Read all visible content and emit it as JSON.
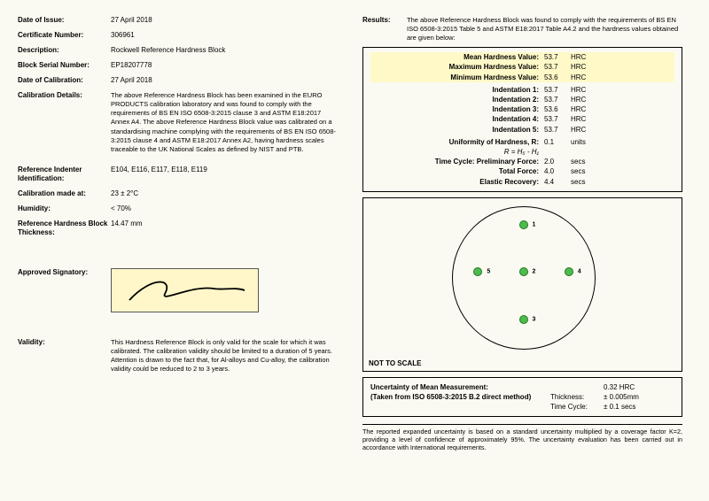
{
  "left": {
    "issue_lbl": "Date of Issue:",
    "issue_val": "27 April 2018",
    "cert_lbl": "Certificate Number:",
    "cert_val": "306961",
    "desc_lbl": "Description:",
    "desc_val": "Rockwell Reference Hardness Block",
    "serial_lbl": "Block Serial Number:",
    "serial_val": "EP18207778",
    "calibdate_lbl": "Date of Calibration:",
    "calibdate_val": "27 April 2018",
    "details_lbl": "Calibration Details:",
    "details_val": "The above Reference Hardness Block has been examined in the EURO PRODUCTS calibration laboratory and was found to comply with the requirements of BS EN ISO 6508-3:2015 clause 3 and ASTM E18:2017 Annex A4. The above Reference Hardness Block value was calibrated on a standardising machine complying with the requirements of BS EN ISO 6508-3:2015 clause 4 and ASTM E18:2017 Annex A2, having hardness scales traceable to the UK National Scales as defined by NIST and PTB.",
    "indenter_lbl": "Reference Indenter Identification:",
    "indenter_val": "E104, E116, E117, E118, E119",
    "calibat_lbl": "Calibration made at:",
    "calibat_val": "23 ± 2°C",
    "humidity_lbl": "Humidity:",
    "humidity_val": "< 70%",
    "thick_lbl": "Reference Hardness Block Thickness:",
    "thick_val": "14.47 mm",
    "sig_lbl": "Approved Signatory:",
    "validity_lbl": "Validity:",
    "validity_val": "This Hardness Reference Block is only valid for the scale for which it was calibrated. The calibration validity should be limited to a duration of 5 years. Attention is drawn to the fact that, for Al-alloys and Cu-alloy, the calibration validity could be reduced to 2 to 3 years."
  },
  "right": {
    "results_lbl": "Results:",
    "results_txt": "The above Reference Hardness Block was found to comply with the requirements of BS EN ISO 6508-3:2015 Table 5 and ASTM E18:2017 Table A4.2 and the hardness values obtained are given below:",
    "mean_k": "Mean Hardness Value:",
    "mean_v": "53.7",
    "unit": "HRC",
    "max_k": "Maximum Hardness Value:",
    "max_v": "53.7",
    "min_k": "Minimum Hardness Value:",
    "min_v": "53.6",
    "i1_k": "Indentation 1:",
    "i1_v": "53.7",
    "i2_k": "Indentation 2:",
    "i2_v": "53.7",
    "i3_k": "Indentation 3:",
    "i3_v": "53.6",
    "i4_k": "Indentation 4:",
    "i4_v": "53.7",
    "i5_k": "Indentation 5:",
    "i5_v": "53.7",
    "unif_k": "Uniformity of Hardness, R:",
    "unif_v": "0.1",
    "unif_u": "units",
    "unif_formula": "R = H₅ - H₁",
    "prelim_k": "Time Cycle:  Preliminary Force:",
    "prelim_v": "2.0",
    "sec": "secs",
    "total_k": "Total Force:",
    "total_v": "4.0",
    "elastic_k": "Elastic Recovery:",
    "elastic_v": "4.4",
    "nts": "NOT TO SCALE",
    "points": {
      "p1": {
        "x": 50,
        "y": 13,
        "num": "1"
      },
      "p2": {
        "x": 50,
        "y": 46,
        "num": "2"
      },
      "p3": {
        "x": 50,
        "y": 80,
        "num": "3"
      },
      "p4": {
        "x": 82,
        "y": 46,
        "num": "4"
      },
      "p5": {
        "x": 18,
        "y": 46,
        "num": "5"
      }
    },
    "umm_lbl": "Uncertainty of Mean Measurement:",
    "umm_val": "0.32 HRC",
    "taken": "(Taken from ISO 6508-3:2015 B.2 direct method)",
    "thick_lbl": "Thickness:",
    "thick_val": "± 0.005mm",
    "tc_lbl": "Time Cycle:",
    "tc_val": "± 0.1 secs",
    "foot": "The reported expanded uncertainty is based on a standard uncertainty multiplied by a coverage factor K=2, providing a level of confidence of approximately 95%. The uncertainty evaluation has been carried out in accordance with International requirements."
  },
  "colors": {
    "highlight": "#fff9c8",
    "point_fill": "#4dbb4d",
    "point_stroke": "#227722"
  }
}
